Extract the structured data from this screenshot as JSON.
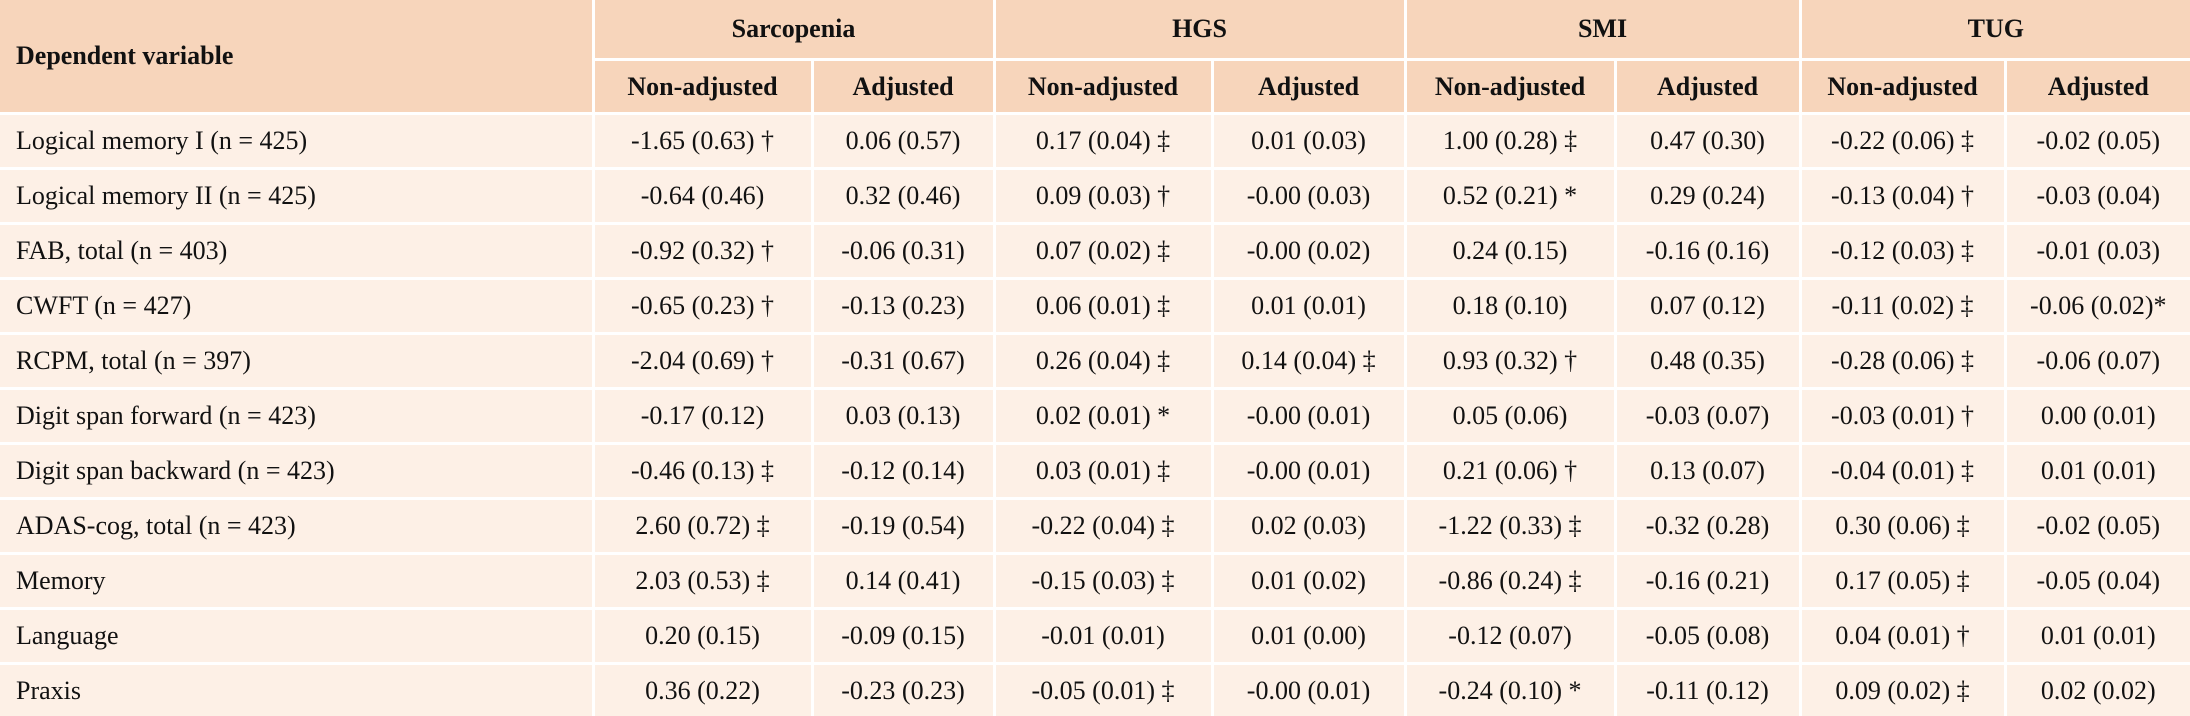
{
  "header": {
    "dependent_label": "Dependent variable",
    "groups": [
      "Sarcopenia",
      "HGS",
      "SMI",
      "TUG"
    ],
    "subcolumns": [
      "Non-adjusted",
      "Adjusted"
    ]
  },
  "rows": [
    {
      "label": "Logical memory I (n = 425)",
      "cells": [
        "-1.65 (0.63) †",
        "0.06 (0.57)",
        "0.17 (0.04) ‡",
        "0.01 (0.03)",
        "1.00 (0.28) ‡",
        "0.47 (0.30)",
        "-0.22 (0.06) ‡",
        "-0.02 (0.05)"
      ]
    },
    {
      "label": "Logical memory II (n = 425)",
      "cells": [
        "-0.64 (0.46)",
        "0.32 (0.46)",
        "0.09 (0.03) †",
        "-0.00 (0.03)",
        "0.52 (0.21) *",
        "0.29 (0.24)",
        "-0.13 (0.04) †",
        "-0.03 (0.04)"
      ]
    },
    {
      "label": "FAB, total (n = 403)",
      "cells": [
        "-0.92 (0.32) †",
        "-0.06 (0.31)",
        "0.07 (0.02) ‡",
        "-0.00 (0.02)",
        "0.24 (0.15)",
        "-0.16 (0.16)",
        "-0.12 (0.03) ‡",
        "-0.01 (0.03)"
      ]
    },
    {
      "label": "CWFT (n = 427)",
      "cells": [
        "-0.65 (0.23) †",
        "-0.13 (0.23)",
        "0.06 (0.01) ‡",
        "0.01 (0.01)",
        "0.18 (0.10)",
        "0.07 (0.12)",
        "-0.11 (0.02) ‡",
        "-0.06 (0.02)*"
      ]
    },
    {
      "label": "RCPM, total (n = 397)",
      "cells": [
        "-2.04 (0.69) †",
        "-0.31 (0.67)",
        "0.26 (0.04) ‡",
        "0.14 (0.04) ‡",
        "0.93 (0.32) †",
        "0.48 (0.35)",
        "-0.28 (0.06) ‡",
        "-0.06 (0.07)"
      ]
    },
    {
      "label": "Digit span forward (n = 423)",
      "cells": [
        "-0.17 (0.12)",
        "0.03 (0.13)",
        "0.02 (0.01) *",
        "-0.00 (0.01)",
        "0.05 (0.06)",
        "-0.03 (0.07)",
        "-0.03 (0.01) †",
        "0.00 (0.01)"
      ]
    },
    {
      "label": "Digit span backward (n = 423)",
      "cells": [
        "-0.46 (0.13) ‡",
        "-0.12 (0.14)",
        "0.03 (0.01) ‡",
        "-0.00 (0.01)",
        "0.21 (0.06) †",
        "0.13 (0.07)",
        "-0.04 (0.01) ‡",
        "0.01 (0.01)"
      ]
    },
    {
      "label": "ADAS-cog, total (n = 423)",
      "cells": [
        "2.60 (0.72) ‡",
        "-0.19 (0.54)",
        "-0.22 (0.04) ‡",
        "0.02 (0.03)",
        "-1.22 (0.33) ‡",
        "-0.32 (0.28)",
        "0.30 (0.06) ‡",
        "-0.02 (0.05)"
      ]
    },
    {
      "label": "Memory",
      "cells": [
        "2.03 (0.53) ‡",
        "0.14 (0.41)",
        "-0.15 (0.03) ‡",
        "0.01 (0.02)",
        "-0.86 (0.24) ‡",
        "-0.16 (0.21)",
        "0.17 (0.05) ‡",
        "-0.05 (0.04)"
      ]
    },
    {
      "label": "Language",
      "cells": [
        "0.20 (0.15)",
        "-0.09 (0.15)",
        "-0.01 (0.01)",
        "0.01 (0.00)",
        "-0.12 (0.07)",
        "-0.05 (0.08)",
        "0.04 (0.01) †",
        "0.01 (0.01)"
      ]
    },
    {
      "label": "Praxis",
      "cells": [
        "0.36 (0.22)",
        "-0.23 (0.23)",
        "-0.05 (0.01) ‡",
        "-0.00 (0.01)",
        "-0.24 (0.10) *",
        "-0.11 (0.12)",
        "0.09 (0.02) ‡",
        "0.02 (0.02)"
      ]
    }
  ]
}
